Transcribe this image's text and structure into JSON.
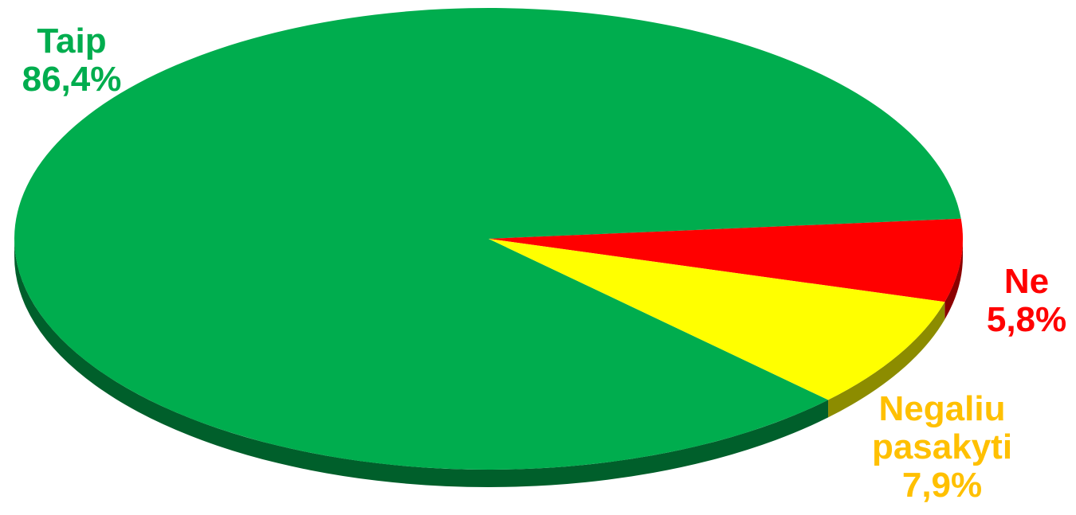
{
  "chart_data": {
    "type": "pie",
    "style": "3d",
    "slices": [
      {
        "label": "Taip",
        "value": 86.4,
        "value_label": "86,4%",
        "color": "#00ad4e",
        "label_color": "#00ad4e"
      },
      {
        "label": "Ne",
        "value": 5.8,
        "value_label": "5,8%",
        "color": "#ff0000",
        "label_color": "#ff0000"
      },
      {
        "label": "Negaliu pasakyti",
        "label_lines": [
          "Negaliu",
          "pasakyti"
        ],
        "value": 7.9,
        "value_label": "7,9%",
        "color": "#ffff00",
        "label_color": "#ffc000"
      }
    ],
    "legend": "none"
  }
}
